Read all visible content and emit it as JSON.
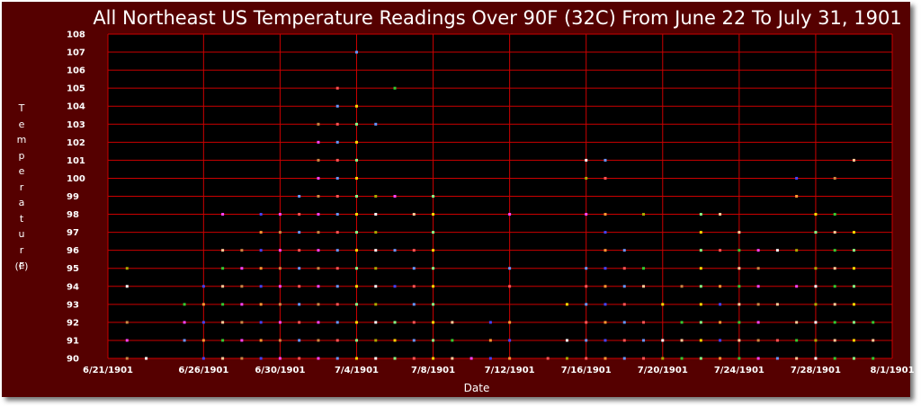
{
  "chart_data": {
    "type": "scatter",
    "title": "All Northeast US Temperature Readings Over 90F (32C) From June 22 To July 31, 1901",
    "xlabel": "Date",
    "ylabel": "Temperature",
    "ylabel_unit": "(F)",
    "x_axis_type": "date",
    "xlim": [
      "1901-06-21",
      "1901-08-01"
    ],
    "ylim": [
      90,
      108
    ],
    "x_ticks": [
      "6/21/1901",
      "6/26/1901",
      "6/30/1901",
      "7/4/1901",
      "7/8/1901",
      "7/12/1901",
      "7/16/1901",
      "7/20/1901",
      "7/24/1901",
      "7/28/1901",
      "8/1/1901"
    ],
    "y_ticks": [
      90,
      91,
      92,
      93,
      94,
      95,
      96,
      97,
      98,
      99,
      100,
      101,
      102,
      103,
      104,
      105,
      106,
      107,
      108
    ],
    "grid": true,
    "legend": "none",
    "background_color": "#000000",
    "frame_color": "#550000",
    "grid_color": "#cc0000",
    "point_colors": [
      "#ffd700",
      "#4444ff",
      "#ff5555",
      "#33cc33",
      "#ff44ff",
      "#ffffff",
      "#88ff88",
      "#ff9933",
      "#6699ff",
      "#ffcc99",
      "#cc8844",
      "#aaaa00"
    ],
    "points": [
      [
        "1901-06-22",
        95
      ],
      [
        "1901-06-22",
        94
      ],
      [
        "1901-06-22",
        92
      ],
      [
        "1901-06-22",
        91
      ],
      [
        "1901-06-22",
        90
      ],
      [
        "1901-06-23",
        90
      ],
      [
        "1901-06-25",
        93
      ],
      [
        "1901-06-25",
        91
      ],
      [
        "1901-06-25",
        92
      ],
      [
        "1901-06-26",
        94
      ],
      [
        "1901-06-26",
        93
      ],
      [
        "1901-06-26",
        92
      ],
      [
        "1901-06-26",
        91
      ],
      [
        "1901-06-26",
        90
      ],
      [
        "1901-06-27",
        98
      ],
      [
        "1901-06-27",
        96
      ],
      [
        "1901-06-27",
        95
      ],
      [
        "1901-06-27",
        94
      ],
      [
        "1901-06-27",
        93
      ],
      [
        "1901-06-27",
        92
      ],
      [
        "1901-06-27",
        91
      ],
      [
        "1901-06-27",
        90
      ],
      [
        "1901-06-28",
        96
      ],
      [
        "1901-06-28",
        95
      ],
      [
        "1901-06-28",
        94
      ],
      [
        "1901-06-28",
        93
      ],
      [
        "1901-06-28",
        92
      ],
      [
        "1901-06-28",
        91
      ],
      [
        "1901-06-28",
        90
      ],
      [
        "1901-06-29",
        98
      ],
      [
        "1901-06-29",
        97
      ],
      [
        "1901-06-29",
        96
      ],
      [
        "1901-06-29",
        95
      ],
      [
        "1901-06-29",
        94
      ],
      [
        "1901-06-29",
        93
      ],
      [
        "1901-06-29",
        92
      ],
      [
        "1901-06-29",
        91
      ],
      [
        "1901-06-29",
        90
      ],
      [
        "1901-06-30",
        98
      ],
      [
        "1901-06-30",
        97
      ],
      [
        "1901-06-30",
        96
      ],
      [
        "1901-06-30",
        95
      ],
      [
        "1901-06-30",
        94
      ],
      [
        "1901-06-30",
        93
      ],
      [
        "1901-06-30",
        92
      ],
      [
        "1901-06-30",
        91
      ],
      [
        "1901-06-30",
        90
      ],
      [
        "1901-07-01",
        99
      ],
      [
        "1901-07-01",
        98
      ],
      [
        "1901-07-01",
        97
      ],
      [
        "1901-07-01",
        96
      ],
      [
        "1901-07-01",
        95
      ],
      [
        "1901-07-01",
        94
      ],
      [
        "1901-07-01",
        93
      ],
      [
        "1901-07-01",
        92
      ],
      [
        "1901-07-01",
        91
      ],
      [
        "1901-07-01",
        90
      ],
      [
        "1901-07-02",
        103
      ],
      [
        "1901-07-02",
        102
      ],
      [
        "1901-07-02",
        101
      ],
      [
        "1901-07-02",
        100
      ],
      [
        "1901-07-02",
        99
      ],
      [
        "1901-07-02",
        98
      ],
      [
        "1901-07-02",
        97
      ],
      [
        "1901-07-02",
        96
      ],
      [
        "1901-07-02",
        95
      ],
      [
        "1901-07-02",
        94
      ],
      [
        "1901-07-02",
        93
      ],
      [
        "1901-07-02",
        92
      ],
      [
        "1901-07-02",
        91
      ],
      [
        "1901-07-02",
        90
      ],
      [
        "1901-07-03",
        105
      ],
      [
        "1901-07-03",
        104
      ],
      [
        "1901-07-03",
        103
      ],
      [
        "1901-07-03",
        102
      ],
      [
        "1901-07-03",
        101
      ],
      [
        "1901-07-03",
        100
      ],
      [
        "1901-07-03",
        99
      ],
      [
        "1901-07-03",
        98
      ],
      [
        "1901-07-03",
        97
      ],
      [
        "1901-07-03",
        96
      ],
      [
        "1901-07-03",
        95
      ],
      [
        "1901-07-03",
        94
      ],
      [
        "1901-07-03",
        93
      ],
      [
        "1901-07-03",
        92
      ],
      [
        "1901-07-03",
        91
      ],
      [
        "1901-07-03",
        90
      ],
      [
        "1901-07-04",
        107
      ],
      [
        "1901-07-04",
        104
      ],
      [
        "1901-07-04",
        103
      ],
      [
        "1901-07-04",
        102
      ],
      [
        "1901-07-04",
        101
      ],
      [
        "1901-07-04",
        100
      ],
      [
        "1901-07-04",
        99
      ],
      [
        "1901-07-04",
        98
      ],
      [
        "1901-07-04",
        97
      ],
      [
        "1901-07-04",
        96
      ],
      [
        "1901-07-04",
        95
      ],
      [
        "1901-07-04",
        94
      ],
      [
        "1901-07-04",
        93
      ],
      [
        "1901-07-04",
        92
      ],
      [
        "1901-07-04",
        91
      ],
      [
        "1901-07-04",
        90
      ],
      [
        "1901-07-05",
        103
      ],
      [
        "1901-07-05",
        99
      ],
      [
        "1901-07-05",
        98
      ],
      [
        "1901-07-05",
        97
      ],
      [
        "1901-07-05",
        96
      ],
      [
        "1901-07-05",
        95
      ],
      [
        "1901-07-05",
        94
      ],
      [
        "1901-07-05",
        93
      ],
      [
        "1901-07-05",
        92
      ],
      [
        "1901-07-05",
        91
      ],
      [
        "1901-07-05",
        90
      ],
      [
        "1901-07-06",
        105
      ],
      [
        "1901-07-06",
        99
      ],
      [
        "1901-07-06",
        96
      ],
      [
        "1901-07-06",
        94
      ],
      [
        "1901-07-06",
        92
      ],
      [
        "1901-07-06",
        91
      ],
      [
        "1901-07-06",
        90
      ],
      [
        "1901-07-07",
        98
      ],
      [
        "1901-07-07",
        96
      ],
      [
        "1901-07-07",
        95
      ],
      [
        "1901-07-07",
        94
      ],
      [
        "1901-07-07",
        93
      ],
      [
        "1901-07-07",
        92
      ],
      [
        "1901-07-07",
        91
      ],
      [
        "1901-07-07",
        90
      ],
      [
        "1901-07-08",
        99
      ],
      [
        "1901-07-08",
        98
      ],
      [
        "1901-07-08",
        97
      ],
      [
        "1901-07-08",
        96
      ],
      [
        "1901-07-08",
        95
      ],
      [
        "1901-07-08",
        94
      ],
      [
        "1901-07-08",
        93
      ],
      [
        "1901-07-08",
        92
      ],
      [
        "1901-07-08",
        91
      ],
      [
        "1901-07-08",
        90
      ],
      [
        "1901-07-09",
        92
      ],
      [
        "1901-07-09",
        91
      ],
      [
        "1901-07-09",
        90
      ],
      [
        "1901-07-10",
        90
      ],
      [
        "1901-07-11",
        92
      ],
      [
        "1901-07-11",
        91
      ],
      [
        "1901-07-11",
        90
      ],
      [
        "1901-07-12",
        98
      ],
      [
        "1901-07-12",
        95
      ],
      [
        "1901-07-12",
        94
      ],
      [
        "1901-07-12",
        92
      ],
      [
        "1901-07-12",
        91
      ],
      [
        "1901-07-12",
        90
      ],
      [
        "1901-07-14",
        90
      ],
      [
        "1901-07-15",
        93
      ],
      [
        "1901-07-15",
        91
      ],
      [
        "1901-07-15",
        90
      ],
      [
        "1901-07-16",
        101
      ],
      [
        "1901-07-16",
        100
      ],
      [
        "1901-07-16",
        98
      ],
      [
        "1901-07-16",
        95
      ],
      [
        "1901-07-16",
        94
      ],
      [
        "1901-07-16",
        93
      ],
      [
        "1901-07-16",
        92
      ],
      [
        "1901-07-16",
        91
      ],
      [
        "1901-07-16",
        90
      ],
      [
        "1901-07-17",
        101
      ],
      [
        "1901-07-17",
        100
      ],
      [
        "1901-07-17",
        98
      ],
      [
        "1901-07-17",
        97
      ],
      [
        "1901-07-17",
        96
      ],
      [
        "1901-07-17",
        95
      ],
      [
        "1901-07-17",
        94
      ],
      [
        "1901-07-17",
        93
      ],
      [
        "1901-07-17",
        92
      ],
      [
        "1901-07-17",
        91
      ],
      [
        "1901-07-17",
        90
      ],
      [
        "1901-07-18",
        96
      ],
      [
        "1901-07-18",
        95
      ],
      [
        "1901-07-18",
        94
      ],
      [
        "1901-07-18",
        93
      ],
      [
        "1901-07-18",
        92
      ],
      [
        "1901-07-18",
        91
      ],
      [
        "1901-07-18",
        90
      ],
      [
        "1901-07-19",
        98
      ],
      [
        "1901-07-19",
        95
      ],
      [
        "1901-07-19",
        94
      ],
      [
        "1901-07-19",
        92
      ],
      [
        "1901-07-19",
        91
      ],
      [
        "1901-07-19",
        90
      ],
      [
        "1901-07-20",
        93
      ],
      [
        "1901-07-20",
        91
      ],
      [
        "1901-07-20",
        90
      ],
      [
        "1901-07-21",
        94
      ],
      [
        "1901-07-21",
        92
      ],
      [
        "1901-07-21",
        91
      ],
      [
        "1901-07-21",
        90
      ],
      [
        "1901-07-22",
        98
      ],
      [
        "1901-07-22",
        97
      ],
      [
        "1901-07-22",
        96
      ],
      [
        "1901-07-22",
        95
      ],
      [
        "1901-07-22",
        94
      ],
      [
        "1901-07-22",
        93
      ],
      [
        "1901-07-22",
        92
      ],
      [
        "1901-07-22",
        91
      ],
      [
        "1901-07-22",
        90
      ],
      [
        "1901-07-23",
        98
      ],
      [
        "1901-07-23",
        96
      ],
      [
        "1901-07-23",
        94
      ],
      [
        "1901-07-23",
        93
      ],
      [
        "1901-07-23",
        92
      ],
      [
        "1901-07-23",
        91
      ],
      [
        "1901-07-23",
        90
      ],
      [
        "1901-07-24",
        97
      ],
      [
        "1901-07-24",
        96
      ],
      [
        "1901-07-24",
        95
      ],
      [
        "1901-07-24",
        94
      ],
      [
        "1901-07-24",
        93
      ],
      [
        "1901-07-24",
        92
      ],
      [
        "1901-07-24",
        91
      ],
      [
        "1901-07-24",
        90
      ],
      [
        "1901-07-25",
        96
      ],
      [
        "1901-07-25",
        95
      ],
      [
        "1901-07-25",
        94
      ],
      [
        "1901-07-25",
        93
      ],
      [
        "1901-07-25",
        92
      ],
      [
        "1901-07-25",
        91
      ],
      [
        "1901-07-25",
        90
      ],
      [
        "1901-07-26",
        96
      ],
      [
        "1901-07-26",
        93
      ],
      [
        "1901-07-26",
        91
      ],
      [
        "1901-07-26",
        90
      ],
      [
        "1901-07-27",
        100
      ],
      [
        "1901-07-27",
        99
      ],
      [
        "1901-07-27",
        96
      ],
      [
        "1901-07-27",
        94
      ],
      [
        "1901-07-27",
        92
      ],
      [
        "1901-07-27",
        91
      ],
      [
        "1901-07-27",
        90
      ],
      [
        "1901-07-28",
        98
      ],
      [
        "1901-07-28",
        97
      ],
      [
        "1901-07-28",
        95
      ],
      [
        "1901-07-28",
        94
      ],
      [
        "1901-07-28",
        93
      ],
      [
        "1901-07-28",
        92
      ],
      [
        "1901-07-28",
        91
      ],
      [
        "1901-07-28",
        90
      ],
      [
        "1901-07-29",
        100
      ],
      [
        "1901-07-29",
        98
      ],
      [
        "1901-07-29",
        97
      ],
      [
        "1901-07-29",
        96
      ],
      [
        "1901-07-29",
        95
      ],
      [
        "1901-07-29",
        94
      ],
      [
        "1901-07-29",
        93
      ],
      [
        "1901-07-29",
        92
      ],
      [
        "1901-07-29",
        91
      ],
      [
        "1901-07-29",
        90
      ],
      [
        "1901-07-30",
        101
      ],
      [
        "1901-07-30",
        97
      ],
      [
        "1901-07-30",
        96
      ],
      [
        "1901-07-30",
        95
      ],
      [
        "1901-07-30",
        94
      ],
      [
        "1901-07-30",
        93
      ],
      [
        "1901-07-30",
        92
      ],
      [
        "1901-07-30",
        91
      ],
      [
        "1901-07-30",
        90
      ],
      [
        "1901-07-31",
        92
      ],
      [
        "1901-07-31",
        91
      ],
      [
        "1901-07-31",
        90
      ]
    ]
  }
}
